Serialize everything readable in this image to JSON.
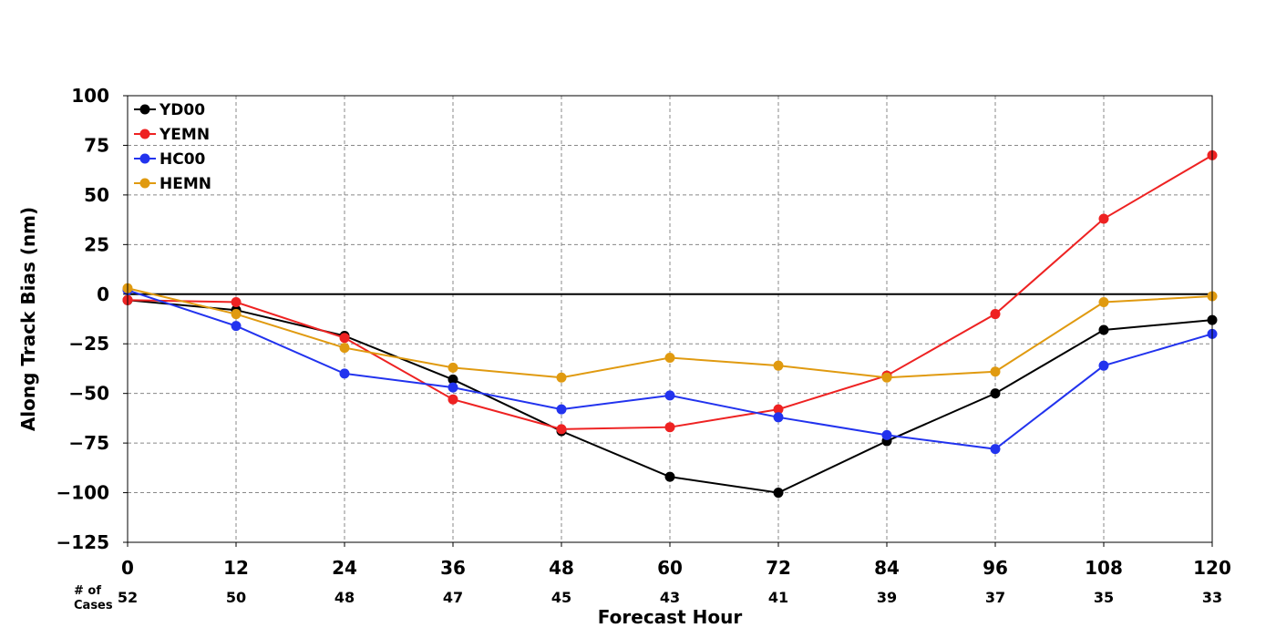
{
  "chart_data": {
    "type": "line",
    "xlabel": "Forecast Hour",
    "ylabel": "Along Track Bias (nm)",
    "x": [
      0,
      12,
      24,
      36,
      48,
      60,
      72,
      84,
      96,
      108,
      120
    ],
    "x_tick_labels": [
      "0",
      "12",
      "24",
      "36",
      "48",
      "60",
      "72",
      "84",
      "96",
      "108",
      "120"
    ],
    "xlim": [
      0,
      120
    ],
    "ylim": [
      -125,
      100
    ],
    "y_ticks": [
      100,
      75,
      50,
      25,
      0,
      -25,
      -50,
      -75,
      -100,
      -125
    ],
    "y_tick_labels": [
      "100",
      "75",
      "50",
      "25",
      "0",
      "−25",
      "−50",
      "−75",
      "−100",
      "−125"
    ],
    "grid": true,
    "legend_position": "top-left",
    "cases_label_line1": "# of",
    "cases_label_line2": "Cases",
    "cases": [
      "52",
      "50",
      "48",
      "47",
      "45",
      "43",
      "41",
      "39",
      "37",
      "35",
      "33"
    ],
    "series": [
      {
        "name": "YD00",
        "color": "#000000",
        "values": [
          -3,
          -8,
          -21,
          -43,
          -69,
          -92,
          -100,
          -74,
          -50,
          -18,
          -13
        ]
      },
      {
        "name": "YEMN",
        "color": "#ee2222",
        "values": [
          -3,
          -4,
          -22,
          -53,
          -68,
          -67,
          -58,
          -41,
          -10,
          38,
          70
        ]
      },
      {
        "name": "HC00",
        "color": "#2233ee",
        "values": [
          2,
          -16,
          -40,
          -47,
          -58,
          -51,
          -62,
          -71,
          -78,
          -36,
          -20
        ]
      },
      {
        "name": "HEMN",
        "color": "#e09a10",
        "values": [
          3,
          -10,
          -27,
          -37,
          -42,
          -32,
          -36,
          -42,
          -39,
          -4,
          -1
        ]
      }
    ]
  }
}
